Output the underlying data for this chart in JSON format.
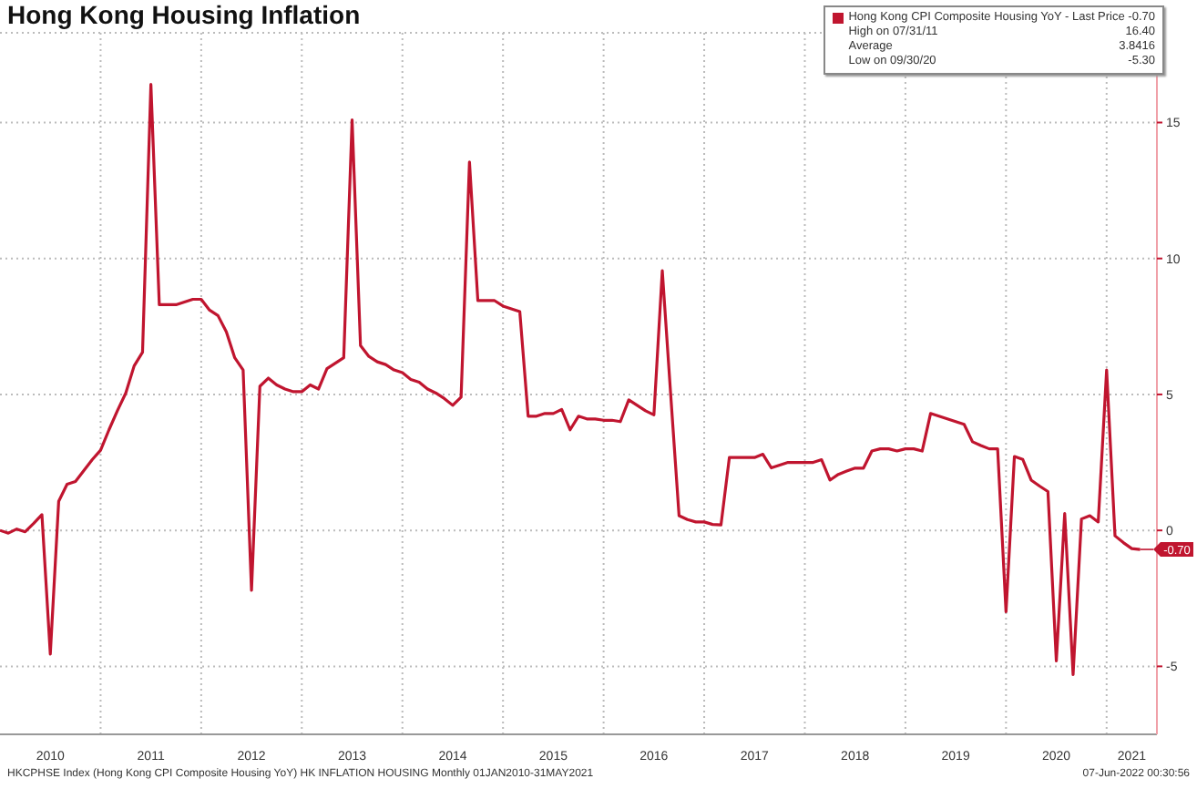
{
  "chart_data": {
    "type": "line",
    "title": "Hong Kong Housing Inflation",
    "x": [
      "2010-01",
      "2010-02",
      "2010-03",
      "2010-04",
      "2010-05",
      "2010-06",
      "2010-07",
      "2010-08",
      "2010-09",
      "2010-10",
      "2010-11",
      "2010-12",
      "2011-01",
      "2011-02",
      "2011-03",
      "2011-04",
      "2011-05",
      "2011-06",
      "2011-07",
      "2011-08",
      "2011-09",
      "2011-10",
      "2011-11",
      "2011-12",
      "2012-01",
      "2012-02",
      "2012-03",
      "2012-04",
      "2012-05",
      "2012-06",
      "2012-07",
      "2012-08",
      "2012-09",
      "2012-10",
      "2012-11",
      "2012-12",
      "2013-01",
      "2013-02",
      "2013-03",
      "2013-04",
      "2013-05",
      "2013-06",
      "2013-07",
      "2013-08",
      "2013-09",
      "2013-10",
      "2013-11",
      "2013-12",
      "2014-01",
      "2014-02",
      "2014-03",
      "2014-04",
      "2014-05",
      "2014-06",
      "2014-07",
      "2014-08",
      "2014-09",
      "2014-10",
      "2014-11",
      "2014-12",
      "2015-01",
      "2015-02",
      "2015-03",
      "2015-04",
      "2015-05",
      "2015-06",
      "2015-07",
      "2015-08",
      "2015-09",
      "2015-10",
      "2015-11",
      "2015-12",
      "2016-01",
      "2016-02",
      "2016-03",
      "2016-04",
      "2016-05",
      "2016-06",
      "2016-07",
      "2016-08",
      "2016-09",
      "2016-10",
      "2016-11",
      "2016-12",
      "2017-01",
      "2017-02",
      "2017-03",
      "2017-04",
      "2017-05",
      "2017-06",
      "2017-07",
      "2017-08",
      "2017-09",
      "2017-10",
      "2017-11",
      "2017-12",
      "2018-01",
      "2018-02",
      "2018-03",
      "2018-04",
      "2018-05",
      "2018-06",
      "2018-07",
      "2018-08",
      "2018-09",
      "2018-10",
      "2018-11",
      "2018-12",
      "2019-01",
      "2019-02",
      "2019-03",
      "2019-04",
      "2019-05",
      "2019-06",
      "2019-07",
      "2019-08",
      "2019-09",
      "2019-10",
      "2019-11",
      "2019-12",
      "2020-01",
      "2020-02",
      "2020-03",
      "2020-04",
      "2020-05",
      "2020-06",
      "2020-07",
      "2020-08",
      "2020-09",
      "2020-10",
      "2020-11",
      "2020-12",
      "2021-01",
      "2021-02",
      "2021-03",
      "2021-04",
      "2021-05"
    ],
    "series": [
      {
        "name": "Hong Kong CPI Composite Housing YoY - Last Price -0.70",
        "color": "#c0152f",
        "values": [
          0.0,
          -0.1,
          0.05,
          -0.05,
          0.25,
          0.58,
          -4.55,
          1.07,
          1.7,
          1.8,
          2.2,
          2.6,
          2.95,
          3.7,
          4.4,
          5.05,
          6.05,
          6.55,
          16.4,
          8.3,
          8.3,
          8.3,
          8.4,
          8.5,
          8.5,
          8.1,
          7.9,
          7.3,
          6.35,
          5.9,
          -2.2,
          5.3,
          5.6,
          5.35,
          5.2,
          5.1,
          5.1,
          5.35,
          5.2,
          5.95,
          6.15,
          6.35,
          15.1,
          6.8,
          6.4,
          6.2,
          6.1,
          5.9,
          5.8,
          5.55,
          5.45,
          5.2,
          5.05,
          4.85,
          4.6,
          4.9,
          13.55,
          8.45,
          8.45,
          8.45,
          8.25,
          8.15,
          8.05,
          4.2,
          4.2,
          4.3,
          4.3,
          4.45,
          3.7,
          4.2,
          4.1,
          4.1,
          4.05,
          4.05,
          4.0,
          4.8,
          4.6,
          4.4,
          4.25,
          9.55,
          5.0,
          0.54,
          0.4,
          0.31,
          0.31,
          0.22,
          0.2,
          2.68,
          2.68,
          2.68,
          2.68,
          2.8,
          2.3,
          2.4,
          2.5,
          2.5,
          2.5,
          2.5,
          2.6,
          1.85,
          2.06,
          2.18,
          2.29,
          2.29,
          2.92,
          3.0,
          3.0,
          2.92,
          3.0,
          3.0,
          2.92,
          4.3,
          4.2,
          4.1,
          4.0,
          3.9,
          3.26,
          3.12,
          3.0,
          3.0,
          -2.99,
          2.72,
          2.61,
          1.85,
          1.63,
          1.43,
          -4.8,
          0.62,
          -5.3,
          0.42,
          0.54,
          0.31,
          5.9,
          -0.2,
          -0.45,
          -0.67,
          -0.7
        ]
      }
    ],
    "xlim": [
      "2010-01",
      "2021-07"
    ],
    "xticks": [
      {
        "value": "2010-07",
        "label": "2010"
      },
      {
        "value": "2011-07",
        "label": "2011"
      },
      {
        "value": "2012-07",
        "label": "2012"
      },
      {
        "value": "2013-07",
        "label": "2013"
      },
      {
        "value": "2014-07",
        "label": "2014"
      },
      {
        "value": "2015-07",
        "label": "2015"
      },
      {
        "value": "2016-07",
        "label": "2016"
      },
      {
        "value": "2017-07",
        "label": "2017"
      },
      {
        "value": "2018-07",
        "label": "2018"
      },
      {
        "value": "2019-07",
        "label": "2019"
      },
      {
        "value": "2020-07",
        "label": "2020"
      },
      {
        "value": "2021-04",
        "label": "2021"
      },
      {
        "value": "2011-01",
        "label": null
      },
      {
        "value": "2012-01",
        "label": null
      },
      {
        "value": "2013-01",
        "label": null
      },
      {
        "value": "2014-01",
        "label": null
      },
      {
        "value": "2015-01",
        "label": null
      },
      {
        "value": "2016-01",
        "label": null
      },
      {
        "value": "2017-01",
        "label": null
      },
      {
        "value": "2018-01",
        "label": null
      },
      {
        "value": "2019-01",
        "label": null
      },
      {
        "value": "2020-01",
        "label": null
      },
      {
        "value": "2021-01",
        "label": null
      }
    ],
    "ylim": [
      -7.5,
      18.3
    ],
    "yticks": [
      -5,
      0,
      5,
      10,
      15
    ],
    "grid": true,
    "legend": "top right",
    "annotations": [
      "High on 07/31/11",
      "16.40",
      "Average",
      "3.8416",
      "Low on 09/30/20",
      "-5.30",
      {
        "text": "-0.70",
        "x": "2021-05",
        "y": -0.7
      },
      "HKCPHSE Index (Hong Kong CPI Composite Housing YoY) HK INFLATION HOUSING  Monthly 01JAN2010-31MAY2021",
      "07-Jun-2022 00:30:56"
    ]
  }
}
